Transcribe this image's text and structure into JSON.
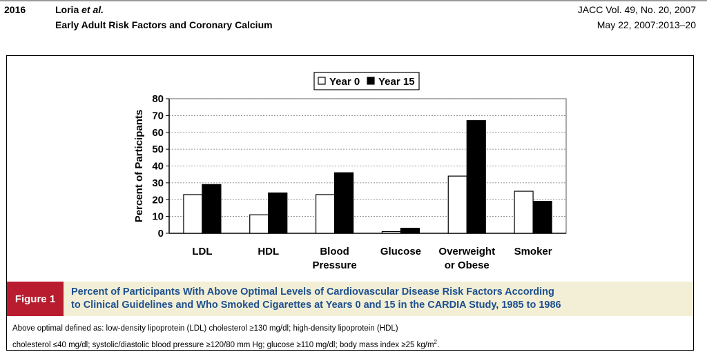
{
  "header": {
    "page_number": "2016",
    "authors_main": "Loria",
    "authors_etal": "et al.",
    "short_title": "Early Adult Risk Factors and Coronary Calcium",
    "journal": "JACC Vol. 49, No. 20, 2007",
    "date_pages": "May 22, 2007:2013–20"
  },
  "figure": {
    "label": "Figure 1",
    "title_line1": "Percent of Participants With Above Optimal Levels of Cardiovascular Disease Risk Factors According",
    "title_line2": "to Clinical Guidelines and Who Smoked Cigarettes at Years 0 and 15 in the CARDIA Study, 1985 to 1986",
    "note_line1": "Above optimal defined as: low-density lipoprotein (LDL) cholesterol ≥130 mg/dl; high-density lipoprotein (HDL)",
    "note_line2_pre": "cholesterol ≤40 mg/dl; systolic/diastolic blood pressure ≥120/80 mm Hg; glucose ≥110 mg/dl; body mass index ≥25 kg/m",
    "note_line2_sup": "2",
    "note_line2_post": "."
  },
  "chart_data": {
    "type": "bar",
    "categories": [
      [
        "LDL"
      ],
      [
        "HDL"
      ],
      [
        "Blood",
        "Pressure"
      ],
      [
        "Glucose"
      ],
      [
        "Overweight",
        "or Obese"
      ],
      [
        "Smoker"
      ]
    ],
    "series": [
      {
        "name": "Year 0",
        "color": "#ffffff",
        "values": [
          23,
          11,
          23,
          1,
          34,
          25
        ]
      },
      {
        "name": "Year 15",
        "color": "#000000",
        "values": [
          29,
          24,
          36,
          3,
          67,
          19
        ]
      }
    ],
    "ylabel": "Percent of Participants",
    "ylim": [
      0,
      80
    ],
    "yticks": [
      0,
      10,
      20,
      30,
      40,
      50,
      60,
      70,
      80
    ],
    "grid": true,
    "legend": "top-center"
  }
}
